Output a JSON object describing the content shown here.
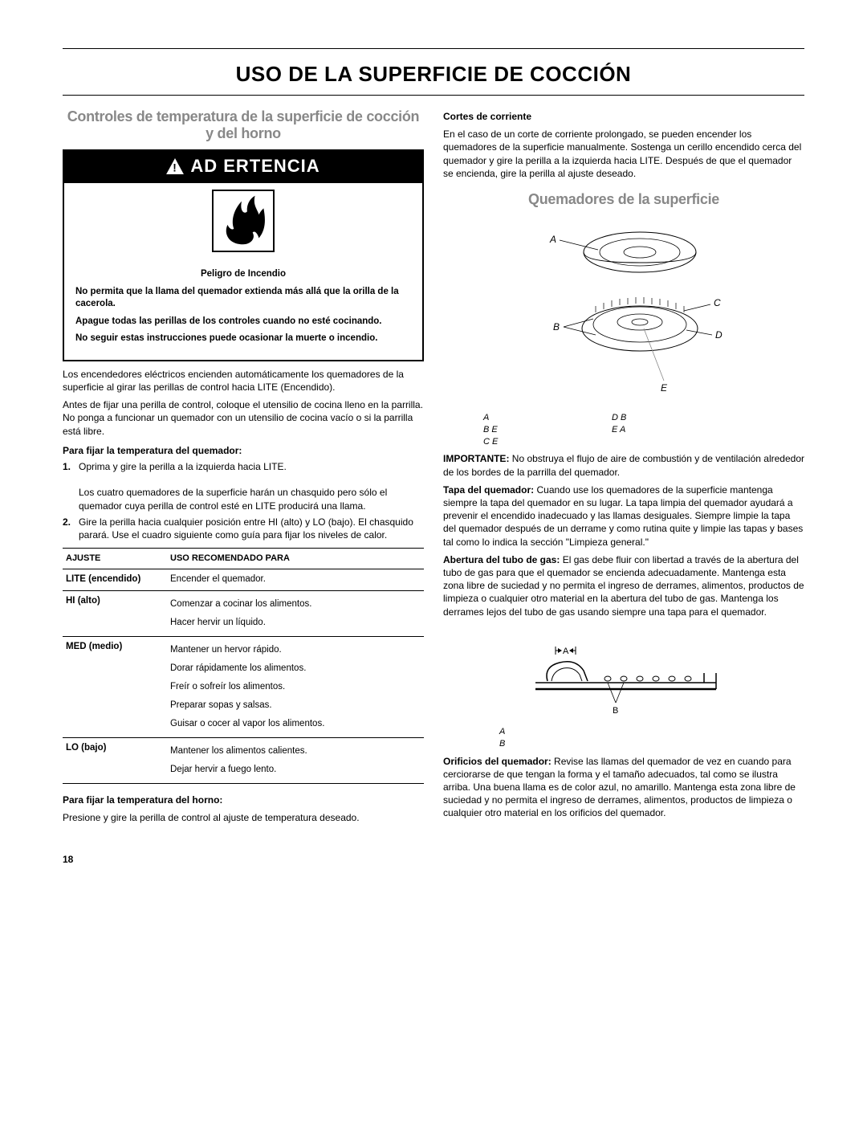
{
  "title": "USO DE LA SUPERFICIE DE COCCIÓN",
  "left": {
    "section_title": "Controles de temperatura de la superficie de cocción y del horno",
    "warning_header": "AD ERTENCIA",
    "warning_lines": [
      "Peligro de Incendio",
      "No permita que la llama del quemador extienda más allá que la orilla de la cacerola.",
      "Apague todas las perillas de los controles cuando no esté cocinando.",
      "No seguir estas instrucciones puede ocasionar la muerte o incendio."
    ],
    "para1": "Los encendedores eléctricos encienden automáticamente los quemadores de la superficie al girar las perillas de control hacia LITE (Encendido).",
    "para2": "Antes de fijar una perilla de control, coloque el utensilio de cocina lleno en la parrilla. No ponga a funcionar un quemador con un utensilio de cocina vacío o si la parrilla está libre.",
    "sub1": "Para fijar la temperatura del quemador:",
    "step1": "Oprima y gire la perilla a la izquierda hacia LITE.",
    "step1b": "Los cuatro quemadores de la superficie harán un chasquido pero sólo el quemador cuya perilla de control esté en LITE producirá una llama.",
    "step2": "Gire la perilla hacia cualquier posición entre HI (alto) y LO (bajo). El chasquido parará. Use el cuadro siguiente como guía para fijar los niveles de calor.",
    "table": {
      "h1": "AJUSTE",
      "h2": "USO RECOMENDADO PARA",
      "rows": [
        {
          "s": "LITE (encendido)",
          "u": "Encender el quemador."
        },
        {
          "s": "HI (alto)",
          "u": "Comenzar a cocinar los alimentos.\nHacer hervir un líquido."
        },
        {
          "s": "MED (medio)",
          "u": "Mantener un hervor rápido.\nDorar rápidamente los alimentos.\nFreír o sofreír los alimentos.\nPreparar sopas y salsas.\nGuisar o cocer al vapor los alimentos."
        },
        {
          "s": "LO (bajo)",
          "u": "Mantener los alimentos calientes.\nDejar hervir a fuego lento."
        }
      ]
    },
    "sub2": "Para fijar la temperatura del horno:",
    "para3": "Presione y gire la perilla de control al ajuste de temperatura deseado."
  },
  "right": {
    "sub1": "Cortes de corriente",
    "para1": "En el caso de un corte de corriente prolongado, se pueden encender los quemadores de la superficie manualmente. Sostenga un cerillo encendido cerca del quemador y gire la perilla a la izquierda hacia LITE. Después de que el quemador se encienda, gire la perilla al ajuste deseado.",
    "section_title": "Quemadores de la superficie",
    "diagram_labels": {
      "a": "A",
      "b": "B",
      "c": "C",
      "d": "D",
      "e": "E"
    },
    "caption1": [
      [
        "A",
        "D B"
      ],
      [
        "B E",
        "E A"
      ],
      [
        "C E",
        ""
      ]
    ],
    "para2_pre": "IMPORTANTE:",
    "para2": " No obstruya el flujo de aire de combustión y de ventilación alrededor de los bordes de la parrilla del quemador.",
    "para3_pre": "Tapa del quemador:",
    "para3": " Cuando use los quemadores de la superficie mantenga siempre la tapa del quemador en su lugar. La tapa limpia del quemador ayudará a prevenir el encendido inadecuado y las llamas desiguales. Siempre limpie la tapa del quemador después de un derrame y como rutina quite y limpie las tapas y bases tal como lo indica la sección \"Limpieza general.\"",
    "para4_pre": "Abertura del tubo de gas:",
    "para4": " El gas debe fluir con libertad a través de la abertura del tubo de gas para que el quemador se encienda adecuadamente. Mantenga esta zona libre de suciedad y no permita el ingreso de derrames, alimentos, productos de limpieza o cualquier otro material en la abertura del tubo de gas. Mantenga los derrames lejos del tubo de gas usando siempre una tapa para el quemador.",
    "diagram2_labels": {
      "a": "A",
      "b": "B"
    },
    "caption2": [
      "A",
      "B"
    ],
    "para5_pre": "Orificios del quemador:",
    "para5": " Revise las llamas del quemador de vez en cuando para cerciorarse de que tengan la forma y el tamaño adecuados, tal como se ilustra arriba. Una buena llama es de color azul, no amarillo. Mantenga esta zona libre de suciedad y no permita el ingreso de derrames, alimentos, productos de limpieza o cualquier otro material en los orificios del quemador."
  },
  "page_number": "18"
}
